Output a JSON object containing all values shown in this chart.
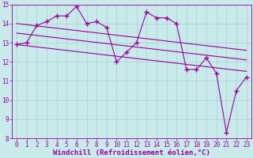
{
  "hours": [
    0,
    1,
    2,
    3,
    4,
    5,
    6,
    7,
    8,
    9,
    10,
    11,
    12,
    13,
    14,
    15,
    16,
    17,
    18,
    19,
    20,
    21,
    22,
    23
  ],
  "windchill": [
    12.9,
    13.0,
    13.9,
    14.1,
    14.4,
    14.4,
    14.9,
    14.0,
    14.1,
    13.8,
    12.0,
    12.5,
    13.0,
    14.6,
    14.3,
    14.3,
    14.0,
    11.6,
    11.6,
    12.2,
    11.4,
    8.3,
    10.5,
    11.2
  ],
  "trend_lines": [
    [
      12.9,
      11.5
    ],
    [
      13.5,
      12.1
    ],
    [
      14.0,
      12.6
    ]
  ],
  "line_color": "#990099",
  "background_color": "#c8eaea",
  "grid_color": "#b0d0d0",
  "ylim": [
    8,
    15
  ],
  "xlim": [
    -0.5,
    23.5
  ],
  "xlabel": "Windchill (Refroidissement éolien,°C)",
  "yticks": [
    8,
    9,
    10,
    11,
    12,
    13,
    14,
    15
  ],
  "xticks": [
    0,
    1,
    2,
    3,
    4,
    5,
    6,
    7,
    8,
    9,
    10,
    11,
    12,
    13,
    14,
    15,
    16,
    17,
    18,
    19,
    20,
    21,
    22,
    23
  ],
  "xlabel_fontsize": 6.5,
  "tick_fontsize": 5.5,
  "marker": "+",
  "markersize": 4,
  "markeredgewidth": 1.0,
  "linewidth": 0.8,
  "trend_linewidth": 0.8
}
